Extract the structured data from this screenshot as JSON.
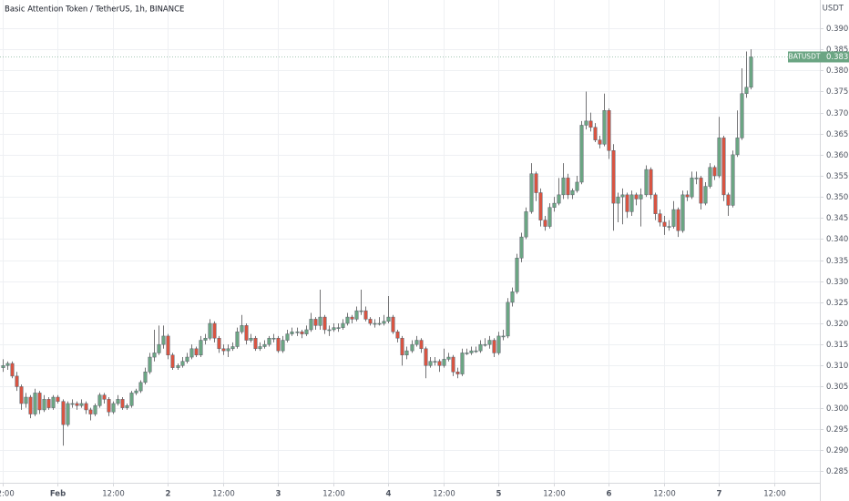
{
  "chart_data": {
    "type": "candlestick",
    "title": "Basic Attention Token / TetherUS, 1h, BINANCE",
    "price_axis_label": "USDT",
    "symbol": "BATUSDT",
    "up_color": "#6ba583",
    "down_color": "#d75442",
    "grid": true,
    "ylim": [
      0.2822,
      0.3967
    ],
    "yticks": [
      {
        "value": 0.285,
        "label": "0.2850"
      },
      {
        "value": 0.29,
        "label": "0.2900"
      },
      {
        "value": 0.295,
        "label": "0.2950"
      },
      {
        "value": 0.3,
        "label": "0.3000"
      },
      {
        "value": 0.305,
        "label": "0.3050"
      },
      {
        "value": 0.31,
        "label": "0.3100"
      },
      {
        "value": 0.315,
        "label": "0.3150"
      },
      {
        "value": 0.32,
        "label": "0.3200"
      },
      {
        "value": 0.325,
        "label": "0.3250"
      },
      {
        "value": 0.33,
        "label": "0.3300"
      },
      {
        "value": 0.335,
        "label": "0.3350"
      },
      {
        "value": 0.34,
        "label": "0.3400"
      },
      {
        "value": 0.345,
        "label": "0.3450"
      },
      {
        "value": 0.35,
        "label": "0.3500"
      },
      {
        "value": 0.355,
        "label": "0.3550"
      },
      {
        "value": 0.36,
        "label": "0.3600"
      },
      {
        "value": 0.365,
        "label": "0.3650"
      },
      {
        "value": 0.37,
        "label": "0.3700"
      },
      {
        "value": 0.375,
        "label": "0.3750"
      },
      {
        "value": 0.38,
        "label": "0.3800"
      },
      {
        "value": 0.385,
        "label": "0.3850"
      },
      {
        "value": 0.39,
        "label": "0.3900"
      }
    ],
    "xlim": [
      -0.6,
      178
    ],
    "xticks": [
      {
        "value": 0,
        "label": "12:00"
      },
      {
        "value": 12,
        "label": "Feb"
      },
      {
        "value": 24,
        "label": "12:00"
      },
      {
        "value": 36,
        "label": "2"
      },
      {
        "value": 48,
        "label": "12:00"
      },
      {
        "value": 60,
        "label": "3"
      },
      {
        "value": 72,
        "label": "12:00"
      },
      {
        "value": 84,
        "label": "4"
      },
      {
        "value": 96,
        "label": "12:00"
      },
      {
        "value": 108,
        "label": "5"
      },
      {
        "value": 120,
        "label": "12:00"
      },
      {
        "value": 132,
        "label": "6"
      },
      {
        "value": 144,
        "label": "12:00"
      },
      {
        "value": 156,
        "label": "7"
      },
      {
        "value": 168,
        "label": "12:00"
      }
    ],
    "x": [
      0,
      1,
      2,
      3,
      4,
      5,
      6,
      7,
      8,
      9,
      10,
      11,
      12,
      13,
      14,
      15,
      16,
      17,
      18,
      19,
      20,
      21,
      22,
      23,
      24,
      25,
      26,
      27,
      28,
      29,
      30,
      31,
      32,
      33,
      34,
      35,
      36,
      37,
      38,
      39,
      40,
      41,
      42,
      43,
      44,
      45,
      46,
      47,
      48,
      49,
      50,
      51,
      52,
      53,
      54,
      55,
      56,
      57,
      58,
      59,
      60,
      61,
      62,
      63,
      64,
      65,
      66,
      67,
      68,
      69,
      70,
      71,
      72,
      73,
      74,
      75,
      76,
      77,
      78,
      79,
      80,
      81,
      82,
      83,
      84,
      85,
      86,
      87,
      88,
      89,
      90,
      91,
      92,
      93,
      94,
      95,
      96,
      97,
      98,
      99,
      100,
      101,
      102,
      103,
      104,
      105,
      106,
      107,
      108,
      109,
      110,
      111,
      112,
      113,
      114,
      115,
      116,
      117,
      118,
      119,
      120,
      121,
      122,
      123,
      124,
      125,
      126,
      127,
      128,
      129,
      130,
      131,
      132,
      133,
      134,
      135,
      136,
      137,
      138,
      139,
      140,
      141,
      142,
      143,
      144,
      145,
      146,
      147,
      148,
      149,
      150,
      151,
      152,
      153,
      154,
      155,
      156,
      157,
      158,
      159,
      160,
      161,
      162,
      163
    ],
    "ohlc": [
      [
        0.3095,
        0.3115,
        0.3085,
        0.31
      ],
      [
        0.31,
        0.311,
        0.309,
        0.3105
      ],
      [
        0.3105,
        0.311,
        0.307,
        0.3075
      ],
      [
        0.3075,
        0.3085,
        0.304,
        0.305
      ],
      [
        0.305,
        0.3055,
        0.2995,
        0.301
      ],
      [
        0.301,
        0.3035,
        0.3,
        0.3025
      ],
      [
        0.3025,
        0.303,
        0.2975,
        0.2985
      ],
      [
        0.2985,
        0.3045,
        0.298,
        0.3035
      ],
      [
        0.3035,
        0.304,
        0.2985,
        0.2995
      ],
      [
        0.2995,
        0.303,
        0.299,
        0.302
      ],
      [
        0.302,
        0.3025,
        0.2995,
        0.3
      ],
      [
        0.3,
        0.303,
        0.2995,
        0.3025
      ],
      [
        0.3025,
        0.303,
        0.301,
        0.3015
      ],
      [
        0.3015,
        0.302,
        0.291,
        0.296
      ],
      [
        0.296,
        0.3015,
        0.2955,
        0.301
      ],
      [
        0.301,
        0.302,
        0.3,
        0.301
      ],
      [
        0.301,
        0.3015,
        0.2995,
        0.3005
      ],
      [
        0.3005,
        0.302,
        0.3,
        0.301
      ],
      [
        0.301,
        0.3015,
        0.2985,
        0.2995
      ],
      [
        0.2995,
        0.3,
        0.297,
        0.2985
      ],
      [
        0.2985,
        0.301,
        0.298,
        0.3005
      ],
      [
        0.3005,
        0.3035,
        0.3,
        0.303
      ],
      [
        0.303,
        0.3035,
        0.301,
        0.302
      ],
      [
        0.302,
        0.3025,
        0.298,
        0.299
      ],
      [
        0.299,
        0.3015,
        0.2985,
        0.301
      ],
      [
        0.301,
        0.303,
        0.3005,
        0.302
      ],
      [
        0.302,
        0.3025,
        0.2995,
        0.3
      ],
      [
        0.3,
        0.301,
        0.2995,
        0.3005
      ],
      [
        0.3005,
        0.304,
        0.3,
        0.3035
      ],
      [
        0.3035,
        0.3045,
        0.303,
        0.304
      ],
      [
        0.304,
        0.3065,
        0.3035,
        0.306
      ],
      [
        0.306,
        0.3095,
        0.3055,
        0.3085
      ],
      [
        0.3085,
        0.313,
        0.308,
        0.312
      ],
      [
        0.312,
        0.3185,
        0.311,
        0.313
      ],
      [
        0.313,
        0.3195,
        0.3125,
        0.315
      ],
      [
        0.315,
        0.3195,
        0.314,
        0.317
      ],
      [
        0.317,
        0.3175,
        0.3115,
        0.3125
      ],
      [
        0.3125,
        0.313,
        0.309,
        0.3095
      ],
      [
        0.3095,
        0.3105,
        0.309,
        0.31
      ],
      [
        0.31,
        0.312,
        0.3095,
        0.311
      ],
      [
        0.311,
        0.313,
        0.3105,
        0.312
      ],
      [
        0.312,
        0.315,
        0.3115,
        0.314
      ],
      [
        0.314,
        0.3145,
        0.312,
        0.3125
      ],
      [
        0.3125,
        0.317,
        0.312,
        0.316
      ],
      [
        0.316,
        0.3175,
        0.315,
        0.3165
      ],
      [
        0.3165,
        0.321,
        0.316,
        0.32
      ],
      [
        0.32,
        0.3205,
        0.3155,
        0.3165
      ],
      [
        0.3165,
        0.317,
        0.313,
        0.314
      ],
      [
        0.314,
        0.315,
        0.3125,
        0.3135
      ],
      [
        0.3135,
        0.315,
        0.312,
        0.314
      ],
      [
        0.314,
        0.3155,
        0.3135,
        0.3145
      ],
      [
        0.3145,
        0.319,
        0.314,
        0.318
      ],
      [
        0.318,
        0.322,
        0.3175,
        0.3195
      ],
      [
        0.3195,
        0.32,
        0.315,
        0.316
      ],
      [
        0.316,
        0.3175,
        0.3155,
        0.3165
      ],
      [
        0.3165,
        0.317,
        0.3135,
        0.314
      ],
      [
        0.314,
        0.3155,
        0.3135,
        0.3145
      ],
      [
        0.3145,
        0.316,
        0.314,
        0.315
      ],
      [
        0.315,
        0.317,
        0.3145,
        0.3165
      ],
      [
        0.3165,
        0.3175,
        0.3155,
        0.3165
      ],
      [
        0.3165,
        0.317,
        0.313,
        0.3135
      ],
      [
        0.3135,
        0.317,
        0.313,
        0.316
      ],
      [
        0.316,
        0.3185,
        0.3155,
        0.3175
      ],
      [
        0.3175,
        0.319,
        0.317,
        0.318
      ],
      [
        0.318,
        0.319,
        0.317,
        0.318
      ],
      [
        0.318,
        0.3185,
        0.3165,
        0.3175
      ],
      [
        0.3175,
        0.3195,
        0.317,
        0.3185
      ],
      [
        0.3185,
        0.3225,
        0.318,
        0.321
      ],
      [
        0.321,
        0.3215,
        0.3185,
        0.3195
      ],
      [
        0.3195,
        0.328,
        0.3185,
        0.3215
      ],
      [
        0.3215,
        0.322,
        0.3175,
        0.3185
      ],
      [
        0.3185,
        0.3195,
        0.317,
        0.3185
      ],
      [
        0.3185,
        0.32,
        0.318,
        0.319
      ],
      [
        0.319,
        0.32,
        0.318,
        0.319
      ],
      [
        0.319,
        0.321,
        0.3185,
        0.32
      ],
      [
        0.32,
        0.3225,
        0.3195,
        0.3215
      ],
      [
        0.3215,
        0.322,
        0.32,
        0.321
      ],
      [
        0.321,
        0.324,
        0.3205,
        0.323
      ],
      [
        0.323,
        0.328,
        0.322,
        0.323
      ],
      [
        0.323,
        0.324,
        0.3205,
        0.321
      ],
      [
        0.321,
        0.3215,
        0.3195,
        0.32
      ],
      [
        0.32,
        0.321,
        0.319,
        0.32
      ],
      [
        0.32,
        0.3215,
        0.3195,
        0.32
      ],
      [
        0.32,
        0.322,
        0.3195,
        0.3205
      ],
      [
        0.3205,
        0.3265,
        0.32,
        0.3215
      ],
      [
        0.3215,
        0.322,
        0.3175,
        0.318
      ],
      [
        0.318,
        0.3185,
        0.3155,
        0.3165
      ],
      [
        0.3165,
        0.317,
        0.31,
        0.3125
      ],
      [
        0.3125,
        0.3145,
        0.3115,
        0.3135
      ],
      [
        0.3135,
        0.316,
        0.313,
        0.315
      ],
      [
        0.315,
        0.317,
        0.3145,
        0.316
      ],
      [
        0.316,
        0.3165,
        0.313,
        0.314
      ],
      [
        0.314,
        0.3145,
        0.307,
        0.31
      ],
      [
        0.31,
        0.312,
        0.3095,
        0.311
      ],
      [
        0.311,
        0.312,
        0.31,
        0.311
      ],
      [
        0.311,
        0.3115,
        0.3085,
        0.31
      ],
      [
        0.31,
        0.314,
        0.3095,
        0.3115
      ],
      [
        0.3115,
        0.313,
        0.311,
        0.312
      ],
      [
        0.312,
        0.3125,
        0.3075,
        0.3085
      ],
      [
        0.3085,
        0.3095,
        0.307,
        0.308
      ],
      [
        0.308,
        0.314,
        0.3075,
        0.313
      ],
      [
        0.313,
        0.314,
        0.3125,
        0.313
      ],
      [
        0.313,
        0.3145,
        0.3125,
        0.3135
      ],
      [
        0.3135,
        0.3145,
        0.313,
        0.3135
      ],
      [
        0.3135,
        0.316,
        0.313,
        0.315
      ],
      [
        0.315,
        0.3165,
        0.3145,
        0.315
      ],
      [
        0.315,
        0.317,
        0.314,
        0.316
      ],
      [
        0.316,
        0.3165,
        0.312,
        0.313
      ],
      [
        0.313,
        0.318,
        0.3125,
        0.317
      ],
      [
        0.317,
        0.3185,
        0.316,
        0.317
      ],
      [
        0.317,
        0.326,
        0.3165,
        0.325
      ],
      [
        0.325,
        0.3285,
        0.324,
        0.3275
      ],
      [
        0.3275,
        0.3365,
        0.327,
        0.3355
      ],
      [
        0.3355,
        0.3415,
        0.3345,
        0.3405
      ],
      [
        0.3405,
        0.3475,
        0.34,
        0.3465
      ],
      [
        0.3465,
        0.358,
        0.346,
        0.3555
      ],
      [
        0.3555,
        0.356,
        0.349,
        0.351
      ],
      [
        0.351,
        0.352,
        0.343,
        0.3445
      ],
      [
        0.3445,
        0.3455,
        0.342,
        0.343
      ],
      [
        0.343,
        0.3485,
        0.3425,
        0.3475
      ],
      [
        0.3475,
        0.35,
        0.3465,
        0.3485
      ],
      [
        0.3485,
        0.3545,
        0.348,
        0.3505
      ],
      [
        0.3505,
        0.358,
        0.3495,
        0.3545
      ],
      [
        0.3545,
        0.3555,
        0.3495,
        0.3505
      ],
      [
        0.3505,
        0.352,
        0.3495,
        0.3515
      ],
      [
        0.3515,
        0.355,
        0.351,
        0.3535
      ],
      [
        0.3535,
        0.368,
        0.353,
        0.367
      ],
      [
        0.367,
        0.375,
        0.366,
        0.368
      ],
      [
        0.368,
        0.37,
        0.3655,
        0.3665
      ],
      [
        0.3665,
        0.3675,
        0.363,
        0.3635
      ],
      [
        0.3635,
        0.3645,
        0.3615,
        0.3625
      ],
      [
        0.3625,
        0.3745,
        0.362,
        0.3705
      ],
      [
        0.3705,
        0.371,
        0.359,
        0.361
      ],
      [
        0.361,
        0.3625,
        0.342,
        0.3485
      ],
      [
        0.3485,
        0.351,
        0.344,
        0.35
      ],
      [
        0.35,
        0.352,
        0.3435,
        0.3505
      ],
      [
        0.3505,
        0.351,
        0.345,
        0.3465
      ],
      [
        0.3465,
        0.3515,
        0.3455,
        0.3505
      ],
      [
        0.3505,
        0.351,
        0.348,
        0.3495
      ],
      [
        0.3495,
        0.352,
        0.343,
        0.3505
      ],
      [
        0.3505,
        0.3575,
        0.35,
        0.3565
      ],
      [
        0.3565,
        0.357,
        0.3495,
        0.3505
      ],
      [
        0.3505,
        0.351,
        0.3445,
        0.346
      ],
      [
        0.346,
        0.347,
        0.343,
        0.344
      ],
      [
        0.344,
        0.3455,
        0.341,
        0.343
      ],
      [
        0.343,
        0.3445,
        0.342,
        0.343
      ],
      [
        0.343,
        0.349,
        0.3425,
        0.347
      ],
      [
        0.347,
        0.3475,
        0.3405,
        0.342
      ],
      [
        0.342,
        0.3515,
        0.3415,
        0.3505
      ],
      [
        0.3505,
        0.3515,
        0.349,
        0.35
      ],
      [
        0.35,
        0.356,
        0.3495,
        0.3545
      ],
      [
        0.3545,
        0.356,
        0.353,
        0.3545
      ],
      [
        0.3545,
        0.355,
        0.347,
        0.3485
      ],
      [
        0.3485,
        0.3535,
        0.348,
        0.3525
      ],
      [
        0.3525,
        0.358,
        0.352,
        0.357
      ],
      [
        0.357,
        0.3575,
        0.354,
        0.355
      ],
      [
        0.355,
        0.369,
        0.3545,
        0.364
      ],
      [
        0.364,
        0.3645,
        0.349,
        0.3505
      ],
      [
        0.3505,
        0.351,
        0.3455,
        0.348
      ],
      [
        0.348,
        0.361,
        0.3475,
        0.36
      ],
      [
        0.36,
        0.3705,
        0.3595,
        0.364
      ],
      [
        0.364,
        0.3805,
        0.3635,
        0.3745
      ],
      [
        0.3745,
        0.3845,
        0.3735,
        0.376
      ],
      [
        0.376,
        0.385,
        0.3755,
        0.3832
      ]
    ]
  }
}
